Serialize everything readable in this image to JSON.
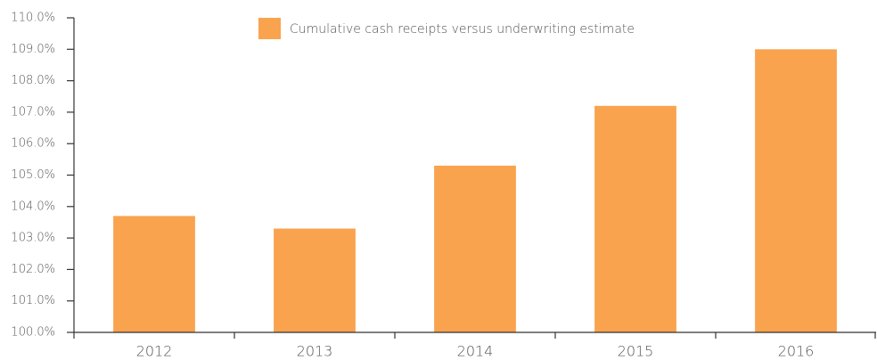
{
  "chart_data": {
    "type": "bar",
    "categories": [
      "2012",
      "2013",
      "2014",
      "2015",
      "2016"
    ],
    "series": [
      {
        "name": "Cumulative cash receipts versus underwriting estimate",
        "color": "#f9a34f",
        "values": [
          103.7,
          103.3,
          105.3,
          107.2,
          109.0
        ]
      }
    ],
    "ylim": [
      100,
      110
    ],
    "yticks": [
      {
        "value": 100,
        "label": "100.0%"
      },
      {
        "value": 101,
        "label": "101.0%"
      },
      {
        "value": 102,
        "label": "102.0%"
      },
      {
        "value": 103,
        "label": "103.0%"
      },
      {
        "value": 104,
        "label": "104.0%"
      },
      {
        "value": 105,
        "label": "105.0%"
      },
      {
        "value": 106,
        "label": "106.0%"
      },
      {
        "value": 107,
        "label": "107.0%"
      },
      {
        "value": 108,
        "label": "108.0%"
      },
      {
        "value": 109,
        "label": "109.0%"
      },
      {
        "value": 110,
        "label": "110.0%"
      }
    ],
    "legend": "top"
  }
}
